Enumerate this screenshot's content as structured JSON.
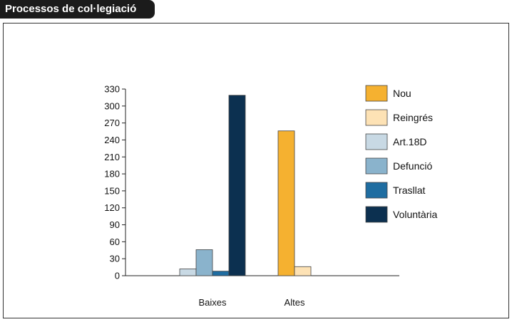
{
  "page_title": "Processos de col·legiació",
  "chart_data": {
    "type": "bar",
    "title": "Processos de col·legiació",
    "xlabel": "",
    "ylabel": "",
    "ylim": [
      0,
      330
    ],
    "y_ticks": [
      0,
      30,
      60,
      90,
      120,
      150,
      180,
      210,
      240,
      270,
      300,
      330
    ],
    "categories": [
      "Baixes",
      "Altes"
    ],
    "series": [
      {
        "name": "Nou",
        "color": "#f5b130",
        "values": [
          0,
          256
        ]
      },
      {
        "name": "Reingrés",
        "color": "#fde2b5",
        "values": [
          0,
          16
        ]
      },
      {
        "name": "Art.18D",
        "color": "#c8d9e4",
        "values": [
          12,
          0
        ]
      },
      {
        "name": "Defunció",
        "color": "#8ab3cc",
        "values": [
          46,
          0
        ]
      },
      {
        "name": "Trasllat",
        "color": "#1f6da1",
        "values": [
          8,
          0
        ]
      },
      {
        "name": "Voluntària",
        "color": "#0c3050",
        "values": [
          319,
          0
        ]
      }
    ],
    "grid": false,
    "legend": "right"
  }
}
